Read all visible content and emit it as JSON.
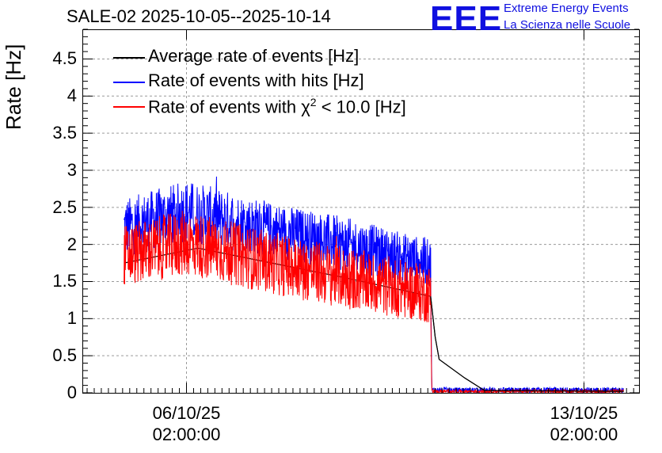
{
  "chart_data": {
    "type": "line",
    "title": "SALE-02 2025-10-05--2025-10-14",
    "ylabel": "Rate [Hz]",
    "xlabel": "",
    "ylim": [
      0,
      4.9
    ],
    "yticks": [
      "0",
      "0.5",
      "1",
      "1.5",
      "2",
      "2.5",
      "3",
      "3.5",
      "4",
      "4.5"
    ],
    "xticks": [
      {
        "date": "06/10/25",
        "time": "02:00:00",
        "day": 1.0
      },
      {
        "date": "13/10/25",
        "time": "02:00:00",
        "day": 8.0
      }
    ],
    "xlim_days": [
      -0.82,
      8.97
    ],
    "grid": true,
    "legend_position": "top-left",
    "series": [
      {
        "name": "Average rate of events [Hz]",
        "color": "#000000",
        "points": [
          [
            -0.1,
            1.75
          ],
          [
            1.2,
            1.95
          ],
          [
            2.5,
            1.75
          ],
          [
            3.8,
            1.55
          ],
          [
            5.3,
            1.3
          ],
          [
            5.38,
            0.75
          ],
          [
            5.45,
            0.45
          ],
          [
            5.9,
            0.2
          ],
          [
            6.25,
            0.03
          ],
          [
            8.7,
            0.02
          ]
        ]
      },
      {
        "name": "Rate of events with hits [Hz]",
        "color": "#0000ff",
        "band": [
          [
            -0.1,
            1.85,
            2.6
          ],
          [
            1.0,
            2.05,
            2.85
          ],
          [
            2.5,
            1.85,
            2.55
          ],
          [
            3.8,
            1.65,
            2.35
          ],
          [
            5.3,
            1.45,
            2.05
          ],
          [
            5.32,
            0.0,
            0.07
          ],
          [
            8.7,
            0.0,
            0.07
          ]
        ]
      },
      {
        "name": "Rate of events with χ² < 10.0 [Hz]",
        "color": "#ff0000",
        "band": [
          [
            -0.1,
            1.45,
            2.25
          ],
          [
            1.0,
            1.6,
            2.45
          ],
          [
            2.5,
            1.35,
            2.15
          ],
          [
            3.8,
            1.15,
            1.95
          ],
          [
            5.3,
            0.95,
            1.7
          ],
          [
            5.32,
            0.0,
            0.04
          ],
          [
            8.7,
            0.0,
            0.04
          ]
        ]
      }
    ]
  },
  "header": {
    "logo_mark": "EEE",
    "logo_line1": "Extreme Energy Events",
    "logo_line2": "La Scienza nelle Scuole"
  },
  "legend": {
    "item1": "Average rate of events [Hz]",
    "item2": "Rate of events with hits [Hz]",
    "item3_prefix": "Rate of events with ",
    "item3_chi": "χ",
    "item3_sup": "2",
    "item3_suffix": " < 10.0 [Hz]"
  }
}
